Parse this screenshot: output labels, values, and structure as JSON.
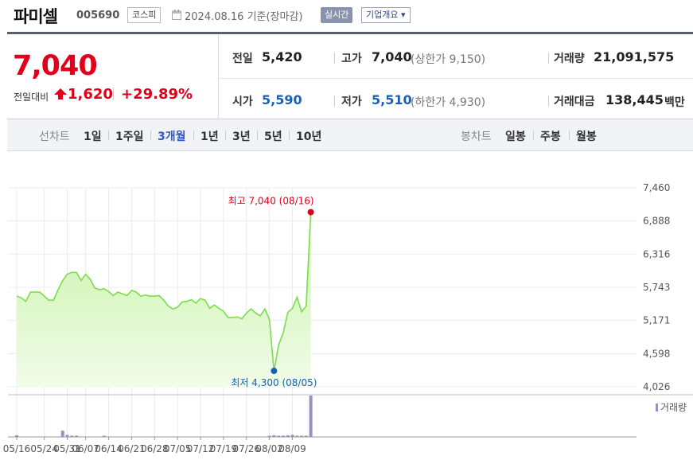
{
  "header": {
    "name": "파미셀",
    "code": "005690",
    "market": "코스피",
    "date_text": "2024.08.16 기준(장마감)",
    "live_badge": "실시간",
    "company_button": "기업개요 ▾"
  },
  "summary": {
    "price": "7,040",
    "change_label": "전일대비",
    "change_amount": "1,620",
    "change_percent": "+29.89%",
    "prev_label": "전일",
    "prev_value": "5,420",
    "high_label": "고가",
    "high_value": "7,040",
    "upper_limit": "(상한가 9,150)",
    "volume_label": "거래량",
    "volume_value": "21,091,575",
    "open_label": "시가",
    "open_value": "5,590",
    "low_label": "저가",
    "low_value": "5,510",
    "lower_limit": "(하한가 4,930)",
    "amount_label": "거래대금",
    "amount_value": "138,445",
    "amount_unit": "백만"
  },
  "period_bar": {
    "line_label": "선차트",
    "line_items": [
      "1일",
      "1주일",
      "3개월",
      "1년",
      "3년",
      "5년",
      "10년"
    ],
    "active": "3개월",
    "candle_label": "봉차트",
    "candle_items": [
      "일봉",
      "주봉",
      "월봉"
    ]
  },
  "chart_data": {
    "type": "area",
    "y_ticks": [
      "7,460",
      "6,888",
      "6,316",
      "5,743",
      "5,171",
      "4,598",
      "4,026"
    ],
    "ylim": [
      4026,
      7460
    ],
    "x_tick_labels": [
      "05/16",
      "05/24",
      "05/31",
      "06/07",
      "06/14",
      "06/21",
      "06/28",
      "07/05",
      "07/12",
      "07/19",
      "07/26",
      "08/02",
      "08/09"
    ],
    "series": [
      {
        "x": [
          "05/16",
          "05/17",
          "05/20",
          "05/21",
          "05/22",
          "05/23",
          "05/24",
          "05/27",
          "05/28",
          "05/29",
          "05/30",
          "05/31",
          "06/03",
          "06/04",
          "06/05",
          "06/07",
          "06/10",
          "06/11",
          "06/12",
          "06/13",
          "06/14",
          "06/17",
          "06/18",
          "06/19",
          "06/20",
          "06/21",
          "06/24",
          "06/25",
          "06/26",
          "06/27",
          "06/28",
          "07/01",
          "07/02",
          "07/03",
          "07/04",
          "07/05",
          "07/08",
          "07/09",
          "07/10",
          "07/11",
          "07/12",
          "07/15",
          "07/16",
          "07/17",
          "07/18",
          "07/19",
          "07/22",
          "07/23",
          "07/24",
          "07/25",
          "07/26",
          "07/29",
          "07/30",
          "07/31",
          "08/01",
          "08/02",
          "08/05",
          "08/06",
          "08/07",
          "08/08",
          "08/09",
          "08/12",
          "08/13",
          "08/14",
          "08/16"
        ],
        "values": [
          5590,
          5560,
          5500,
          5660,
          5660,
          5660,
          5590,
          5520,
          5520,
          5700,
          5860,
          5970,
          6000,
          6000,
          5860,
          5970,
          5880,
          5730,
          5700,
          5720,
          5670,
          5600,
          5660,
          5630,
          5600,
          5690,
          5660,
          5590,
          5610,
          5590,
          5590,
          5600,
          5520,
          5420,
          5370,
          5400,
          5490,
          5500,
          5530,
          5470,
          5550,
          5520,
          5380,
          5440,
          5380,
          5330,
          5220,
          5220,
          5230,
          5200,
          5300,
          5370,
          5300,
          5250,
          5370,
          5190,
          4300,
          4750,
          4960,
          5310,
          5380,
          5570,
          5320,
          5420,
          7040
        ]
      }
    ],
    "volume_label": "거래량",
    "volume": [
      0.04,
      0.0,
      0.0,
      0.0,
      0.0,
      0.0,
      0.0,
      0.0,
      0.0,
      0.0,
      0.15,
      0.05,
      0.02,
      0.03,
      0.0,
      0.0,
      0.0,
      0.0,
      0.0,
      0.01,
      0.0,
      0.0,
      0.0,
      0.0,
      0.0,
      0.0,
      0.0,
      0.0,
      0.0,
      0.0,
      0.0,
      0.0,
      0.0,
      0.0,
      0.0,
      0.0,
      0.0,
      0.0,
      0.0,
      0.0,
      0.0,
      0.0,
      0.0,
      0.0,
      0.0,
      0.0,
      0.0,
      0.0,
      0.0,
      0.0,
      0.0,
      0.0,
      0.0,
      0.0,
      0.0,
      0.02,
      0.04,
      0.03,
      0.03,
      0.04,
      0.05,
      0.03,
      0.03,
      0.03,
      1.0
    ],
    "annotations": {
      "high_text": "최고 7,040 (08/16)",
      "low_text": "최저 4,300 (08/05)"
    },
    "colors": {
      "line": "#7ddc4a",
      "fill_top": "#c7f2a6",
      "fill_bottom": "#f1fce9",
      "high": "#e0001b",
      "low": "#1a5fb4",
      "volume_bar": "#9a8ec2"
    },
    "grid": true
  }
}
